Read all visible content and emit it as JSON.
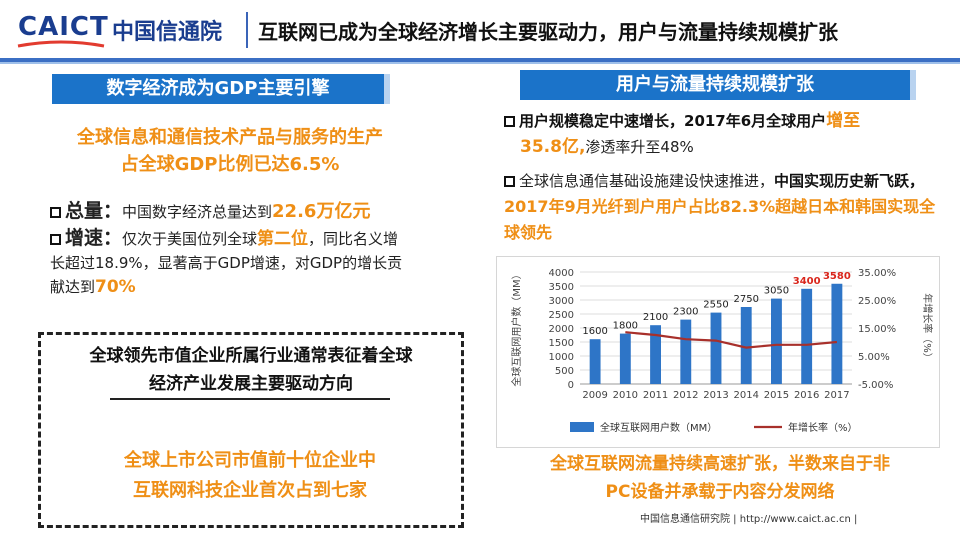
{
  "header": {
    "logo_caict": "CAICT",
    "logo_cn": "中国信通院",
    "title": "互联网已成为全球经济增长主要驱动力，用户与流量持续规模扩张"
  },
  "left": {
    "banner": "数字经济成为GDP主要引擎",
    "highlight_line1": "全球信息和通信技术产品与服务的生产",
    "highlight_line2": "占全球GDP比例已达6.5%",
    "total_key": "总量：",
    "total_text": "中国数字经济总量达到",
    "total_value": "22.6万亿元",
    "growth_key": "增速：",
    "growth_text1": "仅次于美国位列全球",
    "growth_rank": "第二位",
    "growth_text2": "，同比名义增长超过18.9%，显著高于GDP增速，对GDP的增长贡献达到",
    "growth_value": "70%",
    "dash_title_line1": "全球领先市值企业所属行业通常表征着全球",
    "dash_title_line2": "经济产业发展主要驱动方向",
    "dash_body_line1": "全球上市公司市值前十位企业中",
    "dash_body_line2": "互联网科技企业首次占到七家"
  },
  "right": {
    "banner": "用户与流量持续规模扩张",
    "b1_text": "用户规模稳定中速增长，2017年6月全球用户",
    "b1_orange1": "增至",
    "b1_orange2": "35.8亿,",
    "b1_tail": "渗透率升至48%",
    "b2_text": "全球信息通信基础设施建设快速推进，",
    "b2_bold": "中国实现历史新飞跃，",
    "b2_orange": "2017年9月光纤到户用户占比82.3%超越日本和韩国实现全球领先",
    "highlight_line1": "全球互联网流量持续高速扩张，半数来自于非",
    "highlight_line2": "PC设备并承载于内容分发网络"
  },
  "footer": {
    "text": "中国信息通信研究院  |  http://www.caict.ac.cn  |"
  },
  "colors": {
    "brand_blue": "#1a3d8f",
    "banner_blue": "#1b73c9",
    "accent_orange": "#ef8f16",
    "bar_blue": "#2e75c7",
    "line_red": "#a8302b",
    "highlight_red": "#d9261c"
  },
  "chart_data": {
    "type": "bar",
    "categories": [
      "2009",
      "2010",
      "2011",
      "2012",
      "2013",
      "2014",
      "2015",
      "2016",
      "2017"
    ],
    "series": [
      {
        "name": "全球互联网用户数（MM）",
        "type": "bar",
        "axis": "left",
        "values": [
          1600,
          1800,
          2100,
          2300,
          2550,
          2750,
          3050,
          3400,
          3580
        ],
        "labels": [
          "1600",
          "1800",
          "2100",
          "2300",
          "2550",
          "2750",
          "3050",
          "3400",
          "3580"
        ]
      },
      {
        "name": "年增长率（%）",
        "type": "line",
        "axis": "right",
        "values": [
          null,
          13.5,
          12.5,
          11.0,
          10.5,
          8.0,
          9.0,
          9.0,
          10.0
        ]
      }
    ],
    "ylabel": "全球互联网用户数（MM）",
    "ylabel2": "年增长率（%）",
    "ylim": [
      0,
      4000
    ],
    "yticks": [
      "0",
      "500",
      "1000",
      "1500",
      "2000",
      "2500",
      "3000",
      "3500",
      "4000"
    ],
    "y2lim": [
      -5,
      35
    ],
    "y2ticks": [
      "-5.00%",
      "5.00%",
      "15.00%",
      "25.00%",
      "35.00%"
    ],
    "highlight_labels": [
      "3400",
      "3580"
    ],
    "legend_position": "bottom"
  }
}
